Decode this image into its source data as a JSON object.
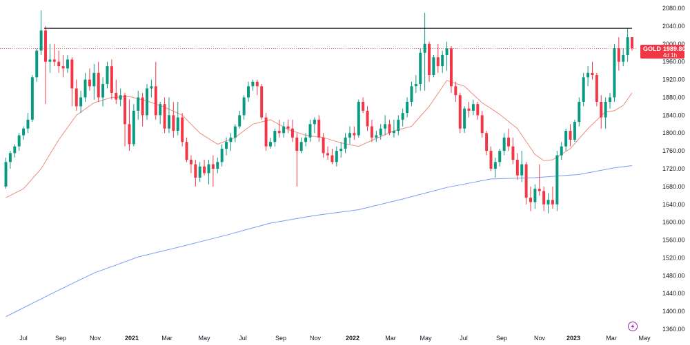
{
  "chart_data": {
    "type": "candlestick",
    "symbol": "GOLD",
    "last_price": "1989.80",
    "countdown": "4d 1h",
    "resistance_level": 2035,
    "ylim": [
      1355,
      2095
    ],
    "y_ticks": [
      "2080.00",
      "2040.00",
      "2000.00",
      "1960.00",
      "1920.00",
      "1880.00",
      "1840.00",
      "1800.00",
      "1760.00",
      "1720.00",
      "1680.00",
      "1640.00",
      "1600.00",
      "1560.00",
      "1520.00",
      "1480.00",
      "1440.00",
      "1400.00",
      "1360.00"
    ],
    "x_ticks": [
      {
        "label": "Jul",
        "bold": false
      },
      {
        "label": "Sep",
        "bold": false
      },
      {
        "label": "Nov",
        "bold": false
      },
      {
        "label": "2021",
        "bold": true
      },
      {
        "label": "Mar",
        "bold": false
      },
      {
        "label": "May",
        "bold": false
      },
      {
        "label": "Jul",
        "bold": false
      },
      {
        "label": "Sep",
        "bold": false
      },
      {
        "label": "Nov",
        "bold": false
      },
      {
        "label": "2022",
        "bold": true
      },
      {
        "label": "Mar",
        "bold": false
      },
      {
        "label": "May",
        "bold": false
      },
      {
        "label": "Jul",
        "bold": false
      },
      {
        "label": "Sep",
        "bold": false
      },
      {
        "label": "Nov",
        "bold": false
      },
      {
        "label": "2023",
        "bold": true
      },
      {
        "label": "Mar",
        "bold": false
      },
      {
        "label": "May",
        "bold": false
      }
    ],
    "candles_ohlc": [
      [
        1680,
        1745,
        1675,
        1735
      ],
      [
        1735,
        1760,
        1720,
        1755
      ],
      [
        1755,
        1775,
        1745,
        1770
      ],
      [
        1770,
        1800,
        1760,
        1795
      ],
      [
        1795,
        1815,
        1785,
        1810
      ],
      [
        1810,
        1845,
        1800,
        1830
      ],
      [
        1830,
        1930,
        1825,
        1925
      ],
      [
        1925,
        1990,
        1915,
        1985
      ],
      [
        1985,
        2075,
        1975,
        2030
      ],
      [
        2030,
        2040,
        1865,
        1960
      ],
      [
        1960,
        2000,
        1935,
        1965
      ],
      [
        1965,
        2000,
        1950,
        1960
      ],
      [
        1960,
        1985,
        1935,
        1950
      ],
      [
        1950,
        1975,
        1925,
        1945
      ],
      [
        1945,
        1975,
        1935,
        1965
      ],
      [
        1965,
        1970,
        1860,
        1900
      ],
      [
        1900,
        1920,
        1850,
        1860
      ],
      [
        1860,
        1895,
        1845,
        1880
      ],
      [
        1880,
        1935,
        1870,
        1920
      ],
      [
        1920,
        1945,
        1895,
        1905
      ],
      [
        1905,
        1955,
        1875,
        1935
      ],
      [
        1935,
        1960,
        1870,
        1880
      ],
      [
        1880,
        1925,
        1860,
        1910
      ],
      [
        1910,
        1960,
        1900,
        1950
      ],
      [
        1950,
        1965,
        1875,
        1890
      ],
      [
        1890,
        1920,
        1865,
        1875
      ],
      [
        1875,
        1900,
        1860,
        1885
      ],
      [
        1885,
        1890,
        1770,
        1820
      ],
      [
        1820,
        1875,
        1760,
        1775
      ],
      [
        1775,
        1865,
        1770,
        1850
      ],
      [
        1850,
        1895,
        1830,
        1880
      ],
      [
        1880,
        1890,
        1815,
        1840
      ],
      [
        1840,
        1910,
        1830,
        1900
      ],
      [
        1900,
        1920,
        1880,
        1905
      ],
      [
        1905,
        1960,
        1830,
        1840
      ],
      [
        1840,
        1870,
        1820,
        1865
      ],
      [
        1865,
        1880,
        1800,
        1810
      ],
      [
        1810,
        1880,
        1800,
        1840
      ],
      [
        1840,
        1870,
        1790,
        1805
      ],
      [
        1805,
        1870,
        1795,
        1835
      ],
      [
        1835,
        1845,
        1770,
        1780
      ],
      [
        1780,
        1790,
        1735,
        1740
      ],
      [
        1740,
        1750,
        1710,
        1730
      ],
      [
        1730,
        1740,
        1680,
        1700
      ],
      [
        1700,
        1735,
        1690,
        1725
      ],
      [
        1725,
        1740,
        1705,
        1710
      ],
      [
        1710,
        1740,
        1685,
        1730
      ],
      [
        1730,
        1750,
        1680,
        1720
      ],
      [
        1720,
        1745,
        1710,
        1735
      ],
      [
        1735,
        1775,
        1725,
        1765
      ],
      [
        1765,
        1790,
        1750,
        1780
      ],
      [
        1780,
        1800,
        1760,
        1790
      ],
      [
        1790,
        1820,
        1780,
        1815
      ],
      [
        1815,
        1850,
        1810,
        1840
      ],
      [
        1840,
        1885,
        1830,
        1880
      ],
      [
        1880,
        1915,
        1870,
        1905
      ],
      [
        1905,
        1920,
        1895,
        1915
      ],
      [
        1915,
        1920,
        1885,
        1905
      ],
      [
        1905,
        1910,
        1830,
        1835
      ],
      [
        1835,
        1845,
        1760,
        1770
      ],
      [
        1770,
        1790,
        1765,
        1780
      ],
      [
        1780,
        1810,
        1770,
        1805
      ],
      [
        1805,
        1830,
        1790,
        1800
      ],
      [
        1800,
        1825,
        1790,
        1815
      ],
      [
        1815,
        1830,
        1800,
        1810
      ],
      [
        1810,
        1830,
        1780,
        1790
      ],
      [
        1790,
        1800,
        1680,
        1760
      ],
      [
        1760,
        1790,
        1755,
        1780
      ],
      [
        1780,
        1800,
        1770,
        1790
      ],
      [
        1790,
        1830,
        1780,
        1820
      ],
      [
        1820,
        1835,
        1800,
        1830
      ],
      [
        1830,
        1840,
        1780,
        1790
      ],
      [
        1790,
        1800,
        1745,
        1755
      ],
      [
        1755,
        1770,
        1740,
        1750
      ],
      [
        1750,
        1765,
        1730,
        1735
      ],
      [
        1735,
        1770,
        1725,
        1760
      ],
      [
        1760,
        1780,
        1745,
        1765
      ],
      [
        1765,
        1800,
        1755,
        1790
      ],
      [
        1790,
        1815,
        1775,
        1800
      ],
      [
        1800,
        1815,
        1785,
        1795
      ],
      [
        1795,
        1875,
        1790,
        1870
      ],
      [
        1870,
        1880,
        1845,
        1850
      ],
      [
        1850,
        1860,
        1805,
        1815
      ],
      [
        1815,
        1830,
        1780,
        1790
      ],
      [
        1790,
        1805,
        1780,
        1795
      ],
      [
        1795,
        1820,
        1785,
        1810
      ],
      [
        1810,
        1840,
        1795,
        1820
      ],
      [
        1820,
        1830,
        1795,
        1800
      ],
      [
        1800,
        1830,
        1790,
        1805
      ],
      [
        1805,
        1840,
        1795,
        1830
      ],
      [
        1830,
        1855,
        1815,
        1845
      ],
      [
        1845,
        1880,
        1835,
        1870
      ],
      [
        1870,
        1915,
        1860,
        1905
      ],
      [
        1905,
        1930,
        1890,
        1910
      ],
      [
        1910,
        1990,
        1895,
        1980
      ],
      [
        1980,
        2070,
        1895,
        2000
      ],
      [
        2000,
        2005,
        1915,
        1930
      ],
      [
        1930,
        1975,
        1925,
        1970
      ],
      [
        1970,
        2000,
        1935,
        1950
      ],
      [
        1950,
        1985,
        1935,
        1975
      ],
      [
        1975,
        2005,
        1940,
        1990
      ],
      [
        1990,
        1995,
        1890,
        1905
      ],
      [
        1905,
        1915,
        1870,
        1885
      ],
      [
        1885,
        1890,
        1800,
        1810
      ],
      [
        1810,
        1860,
        1800,
        1855
      ],
      [
        1855,
        1870,
        1835,
        1850
      ],
      [
        1850,
        1875,
        1840,
        1865
      ],
      [
        1865,
        1870,
        1830,
        1840
      ],
      [
        1840,
        1850,
        1790,
        1800
      ],
      [
        1800,
        1805,
        1750,
        1760
      ],
      [
        1760,
        1770,
        1715,
        1720
      ],
      [
        1720,
        1745,
        1700,
        1735
      ],
      [
        1735,
        1765,
        1725,
        1760
      ],
      [
        1760,
        1800,
        1750,
        1790
      ],
      [
        1790,
        1810,
        1760,
        1770
      ],
      [
        1770,
        1790,
        1730,
        1740
      ],
      [
        1740,
        1755,
        1695,
        1705
      ],
      [
        1705,
        1760,
        1690,
        1730
      ],
      [
        1730,
        1735,
        1640,
        1655
      ],
      [
        1655,
        1680,
        1625,
        1645
      ],
      [
        1645,
        1685,
        1630,
        1675
      ],
      [
        1675,
        1730,
        1660,
        1670
      ],
      [
        1670,
        1680,
        1625,
        1640
      ],
      [
        1640,
        1665,
        1620,
        1650
      ],
      [
        1650,
        1680,
        1630,
        1640
      ],
      [
        1640,
        1760,
        1625,
        1750
      ],
      [
        1750,
        1780,
        1740,
        1770
      ],
      [
        1770,
        1810,
        1760,
        1805
      ],
      [
        1805,
        1820,
        1770,
        1785
      ],
      [
        1785,
        1830,
        1780,
        1825
      ],
      [
        1825,
        1880,
        1815,
        1870
      ],
      [
        1870,
        1935,
        1860,
        1925
      ],
      [
        1925,
        1950,
        1905,
        1935
      ],
      [
        1935,
        1960,
        1920,
        1930
      ],
      [
        1930,
        1935,
        1860,
        1870
      ],
      [
        1870,
        1885,
        1810,
        1835
      ],
      [
        1835,
        1880,
        1810,
        1870
      ],
      [
        1870,
        1890,
        1855,
        1880
      ],
      [
        1880,
        2000,
        1870,
        1990
      ],
      [
        1990,
        2015,
        1940,
        1960
      ],
      [
        1960,
        1990,
        1950,
        1975
      ],
      [
        1975,
        2035,
        1960,
        2015
      ],
      [
        2015,
        2015,
        1985,
        1990
      ]
    ],
    "ma_fast": [
      [
        0,
        1655
      ],
      [
        4,
        1675
      ],
      [
        8,
        1720
      ],
      [
        12,
        1785
      ],
      [
        16,
        1840
      ],
      [
        20,
        1868
      ],
      [
        24,
        1880
      ],
      [
        28,
        1882
      ],
      [
        32,
        1872
      ],
      [
        36,
        1858
      ],
      [
        40,
        1840
      ],
      [
        44,
        1800
      ],
      [
        48,
        1775
      ],
      [
        52,
        1790
      ],
      [
        56,
        1820
      ],
      [
        60,
        1830
      ],
      [
        64,
        1808
      ],
      [
        68,
        1795
      ],
      [
        72,
        1790
      ],
      [
        76,
        1778
      ],
      [
        80,
        1770
      ],
      [
        84,
        1788
      ],
      [
        88,
        1805
      ],
      [
        92,
        1815
      ],
      [
        96,
        1860
      ],
      [
        100,
        1918
      ],
      [
        104,
        1905
      ],
      [
        108,
        1868
      ],
      [
        112,
        1842
      ],
      [
        116,
        1810
      ],
      [
        120,
        1752
      ],
      [
        122,
        1738
      ],
      [
        124,
        1740
      ],
      [
        128,
        1765
      ],
      [
        132,
        1810
      ],
      [
        136,
        1848
      ],
      [
        138,
        1850
      ],
      [
        140,
        1862
      ],
      [
        142,
        1890
      ]
    ],
    "ma_slow": [
      [
        0,
        1388
      ],
      [
        10,
        1438
      ],
      [
        20,
        1486
      ],
      [
        30,
        1522
      ],
      [
        40,
        1546
      ],
      [
        50,
        1571
      ],
      [
        60,
        1598
      ],
      [
        70,
        1615
      ],
      [
        80,
        1628
      ],
      [
        90,
        1652
      ],
      [
        100,
        1678
      ],
      [
        110,
        1697
      ],
      [
        120,
        1700
      ],
      [
        130,
        1707
      ],
      [
        138,
        1722
      ],
      [
        142,
        1727
      ]
    ]
  }
}
